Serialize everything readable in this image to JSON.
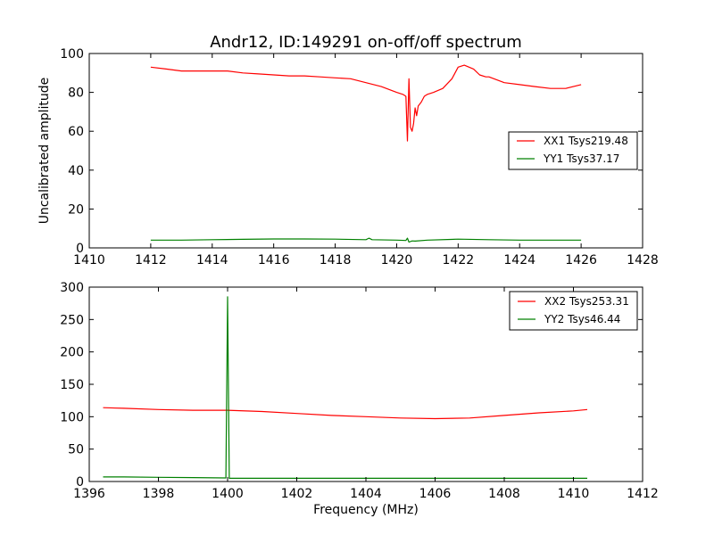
{
  "chart_data": [
    {
      "type": "line",
      "title": "Andr12, ID:149291 on-off/off spectrum",
      "xlabel": "",
      "ylabel": "Uncalibrated amplitude",
      "xlim": [
        1410,
        1428
      ],
      "ylim": [
        0,
        100
      ],
      "xticks": [
        1410,
        1412,
        1414,
        1416,
        1418,
        1420,
        1422,
        1424,
        1426,
        1428
      ],
      "yticks": [
        0,
        20,
        40,
        60,
        80,
        100
      ],
      "grid": false,
      "legend_position": "center-right",
      "series": [
        {
          "name": "XX1 Tsys219.48",
          "color": "#ff0000",
          "x": [
            1412.0,
            1412.5,
            1413.0,
            1413.5,
            1414.0,
            1414.5,
            1415.0,
            1415.5,
            1416.0,
            1416.5,
            1417.0,
            1417.5,
            1418.0,
            1418.5,
            1419.0,
            1419.5,
            1420.0,
            1420.2,
            1420.3,
            1420.35,
            1420.4,
            1420.45,
            1420.5,
            1420.55,
            1420.6,
            1420.65,
            1420.7,
            1420.8,
            1420.9,
            1421.0,
            1421.2,
            1421.5,
            1421.8,
            1422.0,
            1422.2,
            1422.5,
            1422.7,
            1422.9,
            1423.0,
            1423.5,
            1424.0,
            1424.5,
            1425.0,
            1425.5,
            1426.0
          ],
          "y": [
            93,
            92,
            91,
            91,
            91,
            91,
            90,
            89.5,
            89,
            88.5,
            88.5,
            88,
            87.5,
            87,
            85,
            83,
            80,
            79,
            78,
            55,
            87,
            62,
            60,
            64,
            72,
            68,
            73,
            75,
            78,
            79,
            80,
            82,
            87,
            93,
            94,
            92,
            89,
            88,
            88,
            85,
            84,
            83,
            82,
            82,
            84
          ]
        },
        {
          "name": "YY1 Tsys37.17",
          "color": "#008000",
          "x": [
            1412.0,
            1413.0,
            1414.0,
            1415.0,
            1416.0,
            1417.0,
            1418.0,
            1419.0,
            1419.1,
            1419.2,
            1420.0,
            1420.3,
            1420.35,
            1420.4,
            1420.5,
            1420.6,
            1421.0,
            1422.0,
            1423.0,
            1424.0,
            1425.0,
            1426.0
          ],
          "y": [
            4.0,
            4.0,
            4.2,
            4.4,
            4.6,
            4.6,
            4.5,
            4.2,
            5.0,
            4.2,
            4.0,
            3.8,
            5.0,
            3.0,
            3.6,
            3.5,
            4.0,
            4.5,
            4.2,
            4.0,
            4.0,
            4.0
          ]
        }
      ]
    },
    {
      "type": "line",
      "title": "",
      "xlabel": "Frequency (MHz)",
      "ylabel": "",
      "xlim": [
        1396,
        1412
      ],
      "ylim": [
        0,
        300
      ],
      "xticks": [
        1396,
        1398,
        1400,
        1402,
        1404,
        1406,
        1408,
        1410,
        1412
      ],
      "yticks": [
        0,
        50,
        100,
        150,
        200,
        250,
        300
      ],
      "grid": false,
      "legend_position": "top-right",
      "series": [
        {
          "name": "XX2 Tsys253.31",
          "color": "#ff0000",
          "x": [
            1396.4,
            1397.0,
            1398.0,
            1399.0,
            1400.0,
            1401.0,
            1402.0,
            1403.0,
            1404.0,
            1405.0,
            1406.0,
            1407.0,
            1408.0,
            1409.0,
            1410.0,
            1410.4
          ],
          "y": [
            114,
            113,
            111,
            110,
            110,
            108,
            105,
            102,
            100,
            98,
            97,
            98,
            102,
            106,
            109,
            111
          ]
        },
        {
          "name": "YY2 Tsys46.44",
          "color": "#008000",
          "x": [
            1396.4,
            1397.0,
            1398.0,
            1399.0,
            1399.95,
            1400.0,
            1400.05,
            1401.0,
            1402.0,
            1403.0,
            1404.0,
            1405.0,
            1406.0,
            1407.0,
            1408.0,
            1409.0,
            1410.0,
            1410.4
          ],
          "y": [
            7,
            7,
            6.5,
            6,
            5.5,
            285,
            5,
            5,
            5,
            5,
            5,
            5,
            5,
            5,
            5,
            5,
            5,
            5
          ]
        }
      ]
    }
  ]
}
